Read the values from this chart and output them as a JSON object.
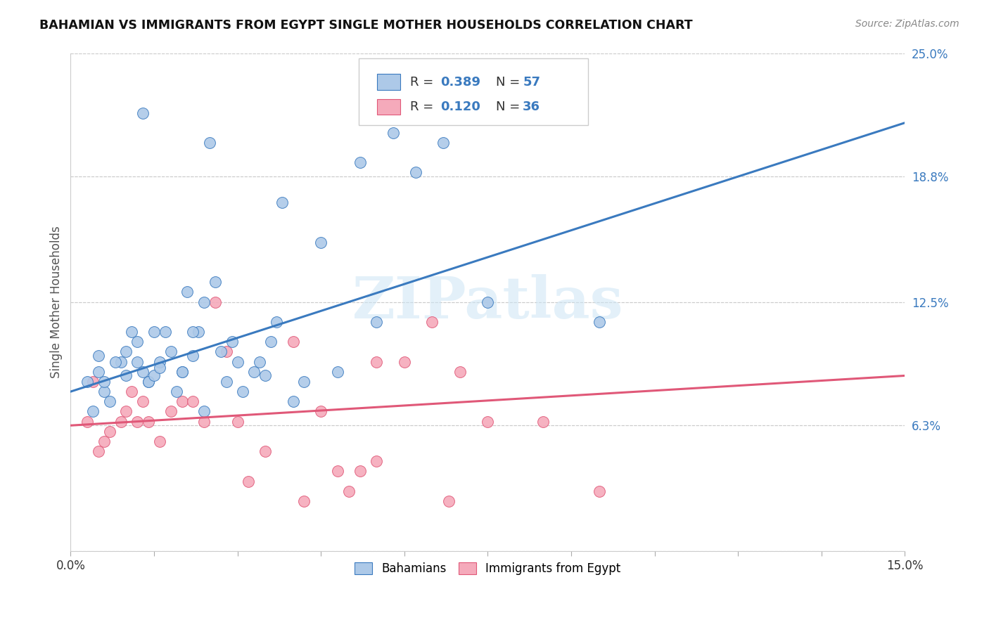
{
  "title": "BAHAMIAN VS IMMIGRANTS FROM EGYPT SINGLE MOTHER HOUSEHOLDS CORRELATION CHART",
  "source": "Source: ZipAtlas.com",
  "ylabel": "Single Mother Households",
  "xlim": [
    0,
    15
  ],
  "ylim": [
    0,
    25
  ],
  "ylabel_ticks": [
    "6.3%",
    "12.5%",
    "18.8%",
    "25.0%"
  ],
  "ylabel_vals": [
    6.3,
    12.5,
    18.8,
    25.0
  ],
  "blue_r": "0.389",
  "blue_n": "57",
  "pink_r": "0.120",
  "pink_n": "36",
  "blue_color": "#adc9e8",
  "pink_color": "#f5aabb",
  "blue_line_color": "#3a7abf",
  "pink_line_color": "#e05878",
  "watermark": "ZIPatlas",
  "blue_line_x0": 0,
  "blue_line_y0": 8.0,
  "blue_line_x1": 15,
  "blue_line_y1": 21.5,
  "pink_line_x0": 0,
  "pink_line_y0": 6.3,
  "pink_line_x1": 15,
  "pink_line_y1": 8.8,
  "blue_scatter_x": [
    1.3,
    2.5,
    3.8,
    4.5,
    5.2,
    5.8,
    6.2,
    6.7,
    0.3,
    0.5,
    0.6,
    0.7,
    0.9,
    1.0,
    1.1,
    1.2,
    1.4,
    1.6,
    1.7,
    1.8,
    1.9,
    2.0,
    2.1,
    2.3,
    2.4,
    2.6,
    2.7,
    2.9,
    3.0,
    3.1,
    3.3,
    3.4,
    3.6,
    3.7,
    4.0,
    4.2,
    4.8,
    7.5,
    9.5,
    0.4,
    0.5,
    0.6,
    0.8,
    1.0,
    1.2,
    1.3,
    1.4,
    1.5,
    1.6,
    2.0,
    2.2,
    2.8,
    3.5,
    5.5,
    2.4,
    2.2,
    1.5
  ],
  "blue_scatter_y": [
    22.0,
    20.5,
    17.5,
    15.5,
    19.5,
    21.0,
    19.0,
    20.5,
    8.5,
    9.0,
    8.0,
    7.5,
    9.5,
    10.0,
    11.0,
    10.5,
    8.5,
    9.5,
    11.0,
    10.0,
    8.0,
    9.0,
    13.0,
    11.0,
    12.5,
    13.5,
    10.0,
    10.5,
    9.5,
    8.0,
    9.0,
    9.5,
    10.5,
    11.5,
    7.5,
    8.5,
    9.0,
    12.5,
    11.5,
    7.0,
    9.8,
    8.5,
    9.5,
    8.8,
    9.5,
    9.0,
    8.5,
    8.8,
    9.2,
    9.0,
    9.8,
    8.5,
    8.8,
    11.5,
    7.0,
    11.0,
    11.0
  ],
  "pink_scatter_x": [
    0.3,
    0.5,
    0.7,
    0.9,
    1.0,
    1.2,
    1.4,
    1.6,
    1.8,
    2.0,
    2.2,
    2.4,
    2.6,
    2.8,
    3.0,
    3.5,
    4.0,
    4.5,
    4.8,
    5.0,
    5.5,
    6.0,
    6.5,
    7.0,
    7.5,
    8.5,
    0.4,
    0.6,
    1.1,
    1.3,
    3.2,
    4.2,
    5.2,
    9.5,
    6.8,
    5.5
  ],
  "pink_scatter_y": [
    6.5,
    5.0,
    6.0,
    6.5,
    7.0,
    6.5,
    6.5,
    5.5,
    7.0,
    7.5,
    7.5,
    6.5,
    12.5,
    10.0,
    6.5,
    5.0,
    10.5,
    7.0,
    4.0,
    3.0,
    9.5,
    9.5,
    11.5,
    9.0,
    6.5,
    6.5,
    8.5,
    5.5,
    8.0,
    7.5,
    3.5,
    2.5,
    4.0,
    3.0,
    2.5,
    4.5
  ]
}
